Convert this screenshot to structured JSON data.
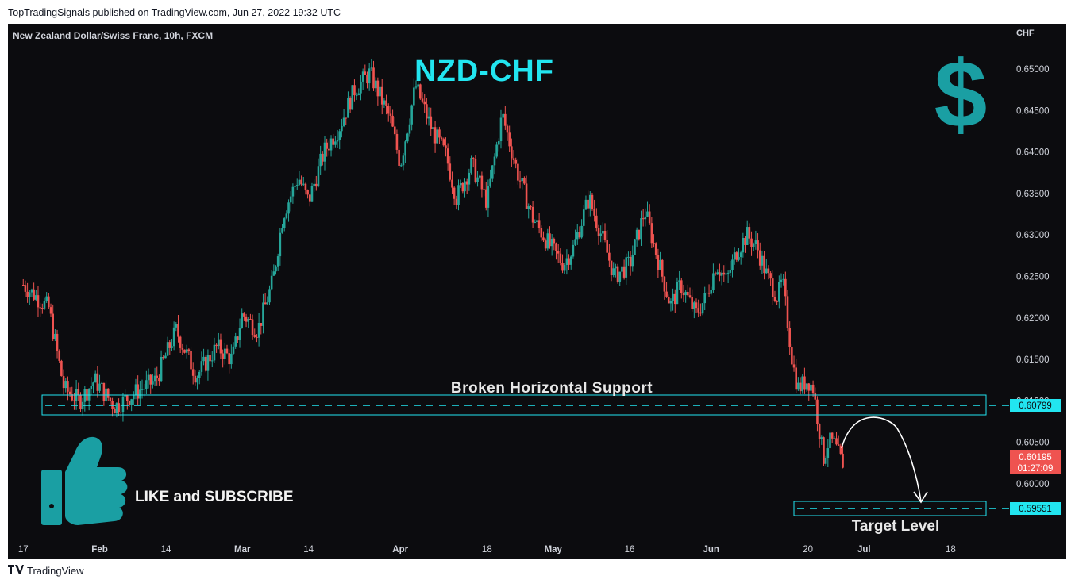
{
  "header": {
    "published": "TopTradingSignals published on TradingView.com, Jun 27, 2022 19:32 UTC"
  },
  "footer": {
    "brand": "TradingView",
    "logo_icon": "tradingview-logo-icon"
  },
  "instrument": {
    "description": "New Zealand Dollar/Swiss Franc, 10h, FXCM",
    "currency": "CHF"
  },
  "overlay": {
    "title": "NZD-CHF",
    "support_label": "Broken Horizontal Support",
    "target_label": "Target Level",
    "cta": "LIKE and SUBSCRIBE",
    "cta_icon": "thumbs-up-icon",
    "dollar_icon": "dollar-sign-icon",
    "dollar_glyph": "$",
    "arrow_icon": "curved-arrow-icon"
  },
  "price_labels": {
    "support": "0.60799",
    "target": "0.59551",
    "last": "0.60195",
    "countdown": "01:27:09"
  },
  "colors": {
    "background": "#0c0c0f",
    "up": "#26a69a",
    "down": "#ef5350",
    "cyan": "#22e5f0",
    "teal_icon": "#1a9fa3",
    "text": "#d1d4dc"
  },
  "chart_data": {
    "type": "candlestick",
    "title": "NZD-CHF",
    "ylabel": "CHF",
    "ylim": [
      0.5935,
      0.6545
    ],
    "y_ticks": [
      "0.65000",
      "0.64500",
      "0.64000",
      "0.63500",
      "0.63000",
      "0.62500",
      "0.62000",
      "0.61500",
      "0.61000",
      "0.60500",
      "0.60000"
    ],
    "x_ticks": [
      "17",
      "Feb",
      "14",
      "Mar",
      "14",
      "Apr",
      "18",
      "May",
      "16",
      "Jun",
      "20",
      "Jul",
      "18"
    ],
    "levels": {
      "support": 0.60799,
      "target": 0.59551,
      "last": 0.60195
    },
    "close_path": [
      [
        "2022-01-17",
        0.624
      ],
      [
        "2022-01-22",
        0.6212
      ],
      [
        "2022-01-25",
        0.6115
      ],
      [
        "2022-01-28",
        0.61
      ],
      [
        "2022-01-31",
        0.6125
      ],
      [
        "2022-02-04",
        0.6093
      ],
      [
        "2022-02-08",
        0.611
      ],
      [
        "2022-02-12",
        0.6125
      ],
      [
        "2022-02-16",
        0.6185
      ],
      [
        "2022-02-20",
        0.613
      ],
      [
        "2022-02-24",
        0.6165
      ],
      [
        "2022-02-27",
        0.615
      ],
      [
        "2022-03-01",
        0.6205
      ],
      [
        "2022-03-04",
        0.6185
      ],
      [
        "2022-03-07",
        0.6245
      ],
      [
        "2022-03-09",
        0.6325
      ],
      [
        "2022-03-12",
        0.637
      ],
      [
        "2022-03-14",
        0.634
      ],
      [
        "2022-03-17",
        0.64
      ],
      [
        "2022-03-20",
        0.643
      ],
      [
        "2022-03-23",
        0.6475
      ],
      [
        "2022-03-26",
        0.6495
      ],
      [
        "2022-03-30",
        0.644
      ],
      [
        "2022-04-01",
        0.6385
      ],
      [
        "2022-04-04",
        0.648
      ],
      [
        "2022-04-07",
        0.643
      ],
      [
        "2022-04-10",
        0.6395
      ],
      [
        "2022-04-12",
        0.6345
      ],
      [
        "2022-04-15",
        0.6385
      ],
      [
        "2022-04-18",
        0.634
      ],
      [
        "2022-04-21",
        0.6445
      ],
      [
        "2022-04-24",
        0.6375
      ],
      [
        "2022-04-27",
        0.632
      ],
      [
        "2022-04-30",
        0.629
      ],
      [
        "2022-05-03",
        0.6265
      ],
      [
        "2022-05-05",
        0.6285
      ],
      [
        "2022-05-08",
        0.6345
      ],
      [
        "2022-05-11",
        0.629
      ],
      [
        "2022-05-13",
        0.625
      ],
      [
        "2022-05-16",
        0.6265
      ],
      [
        "2022-05-19",
        0.633
      ],
      [
        "2022-05-22",
        0.626
      ],
      [
        "2022-05-24",
        0.6215
      ],
      [
        "2022-05-26",
        0.624
      ],
      [
        "2022-05-29",
        0.6205
      ],
      [
        "2022-05-31",
        0.6225
      ],
      [
        "2022-06-02",
        0.6265
      ],
      [
        "2022-06-04",
        0.6245
      ],
      [
        "2022-06-06",
        0.628
      ],
      [
        "2022-06-08",
        0.63
      ],
      [
        "2022-06-10",
        0.6285
      ],
      [
        "2022-06-12",
        0.625
      ],
      [
        "2022-06-14",
        0.6225
      ],
      [
        "2022-06-15",
        0.6245
      ],
      [
        "2022-06-17",
        0.6145
      ],
      [
        "2022-06-18",
        0.6115
      ],
      [
        "2022-06-20",
        0.6125
      ],
      [
        "2022-06-21",
        0.6115
      ],
      [
        "2022-06-22",
        0.6075
      ],
      [
        "2022-06-23",
        0.603
      ],
      [
        "2022-06-24",
        0.605
      ],
      [
        "2022-06-25",
        0.605
      ],
      [
        "2022-06-27",
        0.60195
      ]
    ],
    "projection": [
      [
        "2022-06-27",
        0.60195
      ],
      [
        "2022-07-01",
        0.606
      ],
      [
        "2022-07-13",
        0.59551
      ]
    ]
  }
}
